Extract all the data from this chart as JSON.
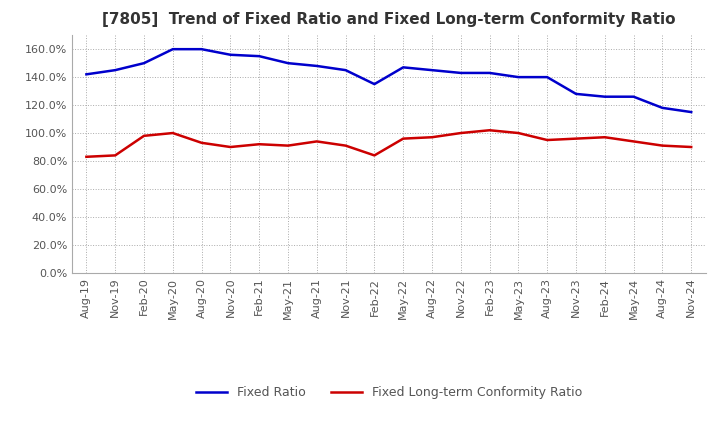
{
  "title": "[7805]  Trend of Fixed Ratio and Fixed Long-term Conformity Ratio",
  "x_labels": [
    "Aug-19",
    "Nov-19",
    "Feb-20",
    "May-20",
    "Aug-20",
    "Nov-20",
    "Feb-21",
    "May-21",
    "Aug-21",
    "Nov-21",
    "Feb-22",
    "May-22",
    "Aug-22",
    "Nov-22",
    "Feb-23",
    "May-23",
    "Aug-23",
    "Nov-23",
    "Feb-24",
    "May-24",
    "Aug-24",
    "Nov-24"
  ],
  "fixed_ratio": [
    142,
    145,
    150,
    160,
    160,
    156,
    155,
    150,
    148,
    145,
    135,
    147,
    145,
    143,
    143,
    140,
    140,
    128,
    126,
    126,
    118,
    115
  ],
  "fixed_lt_ratio": [
    83,
    84,
    98,
    100,
    93,
    90,
    92,
    91,
    94,
    91,
    84,
    96,
    97,
    100,
    102,
    100,
    95,
    96,
    97,
    94,
    91,
    90
  ],
  "fixed_ratio_color": "#0000cc",
  "fixed_lt_ratio_color": "#cc0000",
  "ylim": [
    0,
    170
  ],
  "yticks": [
    0,
    20,
    40,
    60,
    80,
    100,
    120,
    140,
    160
  ],
  "grid_color": "#aaaaaa",
  "background_color": "#ffffff",
  "title_fontsize": 11,
  "tick_fontsize": 8,
  "legend_fixed": "Fixed Ratio",
  "legend_lt": "Fixed Long-term Conformity Ratio"
}
